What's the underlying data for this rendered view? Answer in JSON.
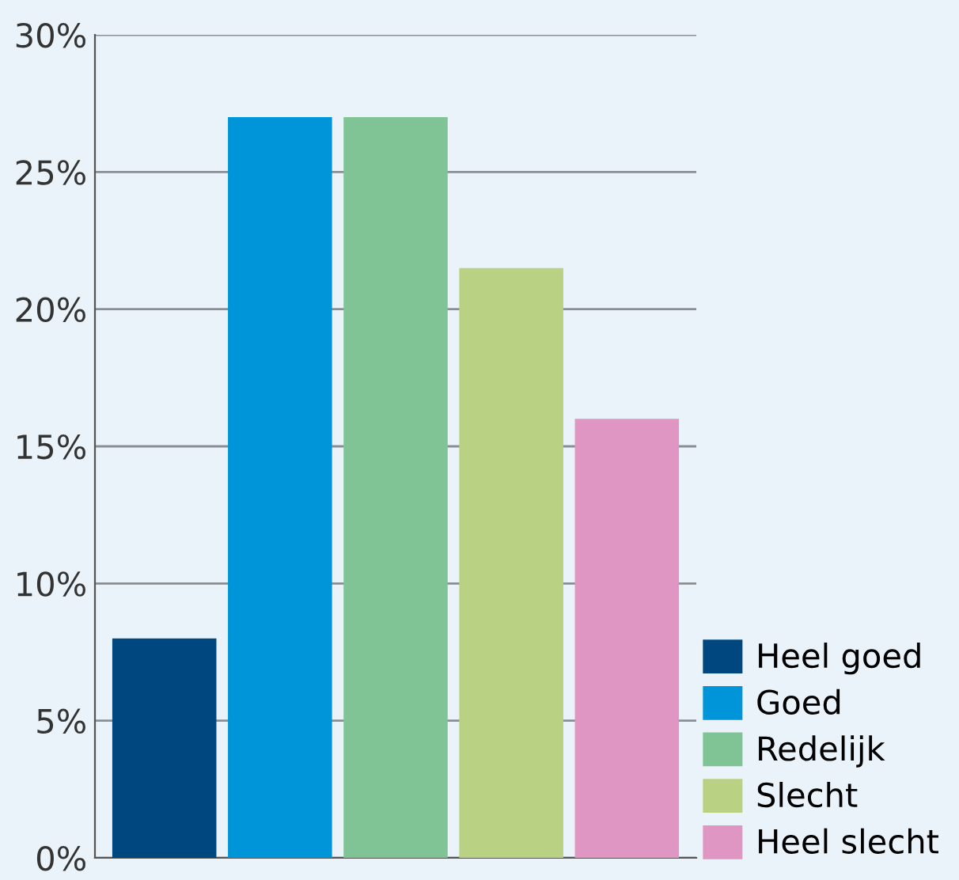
{
  "chart_data": {
    "type": "bar",
    "categories": [
      null,
      null,
      null,
      null,
      null
    ],
    "series": [
      {
        "name": "Heel goed",
        "color": "#00467f",
        "values": [
          8,
          null,
          null,
          null,
          null
        ]
      },
      {
        "name": "Goed",
        "color": "#0095d9",
        "values": [
          null,
          27,
          null,
          null,
          null
        ]
      },
      {
        "name": "Redelijk",
        "color": "#80c496",
        "values": [
          null,
          null,
          27,
          null,
          null
        ]
      },
      {
        "name": "Slecht",
        "color": "#b9d183",
        "values": [
          null,
          null,
          null,
          21.5,
          null
        ]
      },
      {
        "name": "Heel slecht",
        "color": "#e096c2",
        "values": [
          null,
          null,
          null,
          null,
          16
        ]
      }
    ],
    "ylim": [
      0,
      30
    ],
    "yticks": [
      {
        "value": 0,
        "label": "0%"
      },
      {
        "value": 5,
        "label": "5%"
      },
      {
        "value": 10,
        "label": "10%"
      },
      {
        "value": 15,
        "label": "15%"
      },
      {
        "value": 20,
        "label": "20%"
      },
      {
        "value": 25,
        "label": "25%"
      },
      {
        "value": 30,
        "label": "30%"
      }
    ],
    "grid": "y",
    "legend": "bottom right",
    "tick_labels": "y"
  }
}
